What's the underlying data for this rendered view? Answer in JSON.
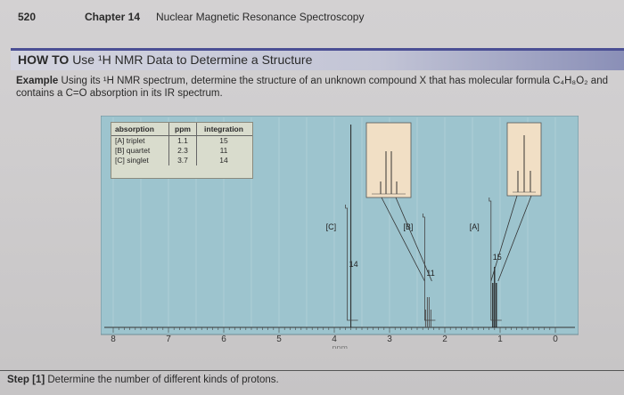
{
  "header": {
    "page_number": "520",
    "chapter": "Chapter 14",
    "chapter_title": "Nuclear Magnetic Resonance Spectroscopy"
  },
  "howto": {
    "label": "HOW TO",
    "title": "Use ¹H NMR Data to Determine a Structure"
  },
  "example": {
    "label": "Example",
    "text": "Using its ¹H NMR spectrum, determine the structure of an unknown compound X that has molecular formula C₄H₈O₂ and contains a C=O absorption in its IR spectrum."
  },
  "table": {
    "headers": [
      "absorption",
      "ppm",
      "integration"
    ],
    "rows": [
      [
        "[A] triplet",
        "1.1",
        "15"
      ],
      [
        "[B] quartet",
        "2.3",
        "11"
      ],
      [
        "[C] singlet",
        "3.7",
        "14"
      ]
    ]
  },
  "step": {
    "label": "Step [1]",
    "text": "Determine the number of different kinds of protons."
  },
  "colors": {
    "spectrum_bg": "#9dc4ce",
    "inset_bg": "#f1dfc5",
    "banner": "#4b4f94"
  },
  "chart_data": {
    "type": "line",
    "xlabel": "ppm",
    "xlim": [
      8,
      0
    ],
    "xticks": [
      "8",
      "7",
      "6",
      "5",
      "4",
      "3",
      "2",
      "1",
      "0"
    ],
    "peaks": [
      {
        "label": "[A]",
        "multiplicity": "triplet",
        "ppm": 1.1,
        "integration": 15
      },
      {
        "label": "[B]",
        "multiplicity": "quartet",
        "ppm": 2.3,
        "integration": 11
      },
      {
        "label": "[C]",
        "multiplicity": "singlet",
        "ppm": 3.7,
        "integration": 14
      }
    ]
  }
}
